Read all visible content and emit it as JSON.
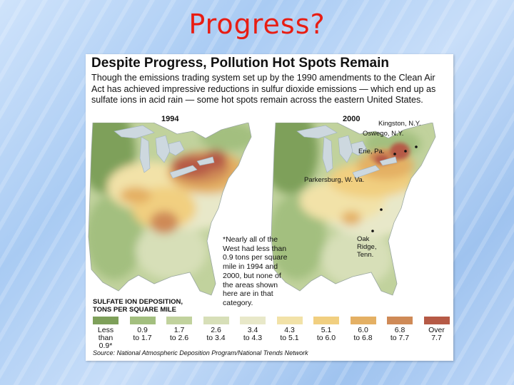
{
  "slide": {
    "title": "Progress?"
  },
  "figure": {
    "title": "Despite Progress, Pollution Hot Spots Remain",
    "subtitle": "Though the emissions trading system set up by the 1990 amendments to the Clean Air Act has achieved impressive reductions in sulfur dioxide emissions — which end up as sulfate ions in acid rain — some hot spots remain across the eastern United States.",
    "map_left": {
      "year": "1994"
    },
    "map_right": {
      "year": "2000",
      "places": {
        "kingston": "Kingston, N.Y.",
        "oswego": "Oswego, N.Y.",
        "erie": "Erie, Pa.",
        "parkersburg": "Parkersburg, W. Va.",
        "oak_ridge_1": "Oak",
        "oak_ridge_2": "Ridge,",
        "oak_ridge_3": "Tenn."
      }
    },
    "note": "*Nearly all of the West had less than 0.9 tons per square mile in 1994 and 2000, but none of the areas shown here are in that category.",
    "legend": {
      "title_line1": "SULFATE ION DEPOSITION,",
      "title_line2": "TONS PER SQUARE MILE",
      "items": [
        {
          "line1": "Less",
          "line2": "than 0.9*",
          "color": "#7ea05a"
        },
        {
          "line1": "0.9",
          "line2": "to 1.7",
          "color": "#a3bf7f"
        },
        {
          "line1": "1.7",
          "line2": "to 2.6",
          "color": "#c1d29d"
        },
        {
          "line1": "2.6",
          "line2": "to 3.4",
          "color": "#d7dfb8"
        },
        {
          "line1": "3.4",
          "line2": "to 4.3",
          "color": "#e8e8c9"
        },
        {
          "line1": "4.3",
          "line2": "to 5.1",
          "color": "#f2e2a8"
        },
        {
          "line1": "5.1",
          "line2": "to 6.0",
          "color": "#f1cf80"
        },
        {
          "line1": "6.0",
          "line2": "to 6.8",
          "color": "#e4b064"
        },
        {
          "line1": "6.8",
          "line2": "to 7.7",
          "color": "#cf8a57"
        },
        {
          "line1": "Over",
          "line2": "7.7",
          "color": "#b65a46"
        }
      ]
    },
    "source": "Source: National Atmospheric Deposition Program/National Trends Network",
    "colors": {
      "lake": "#cdd8df",
      "ocean": "#ffffff",
      "title": "#e81d13"
    }
  }
}
